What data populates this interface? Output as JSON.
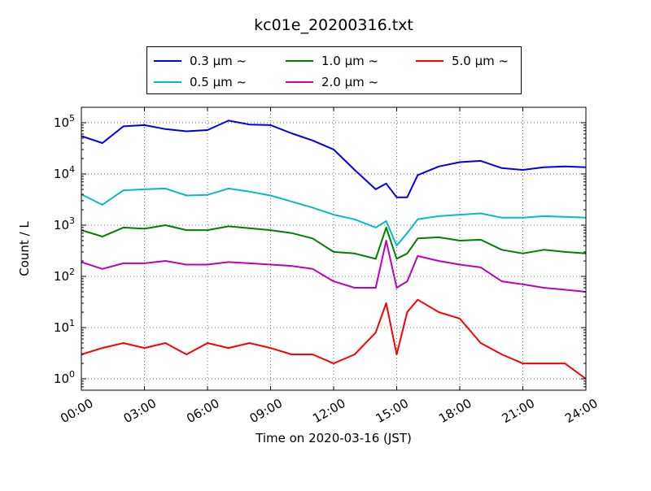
{
  "chart_data": {
    "type": "line",
    "title": "kc01e_20200316.txt",
    "xlabel": "Time on 2020-03-16 (JST)",
    "ylabel": "Count / L",
    "yscale": "log",
    "ylim": [
      0.6,
      200000
    ],
    "xlim": [
      "00:00",
      "24:00"
    ],
    "grid": true,
    "legend_position": "top, above plot",
    "x_tick_labels": [
      "00:00",
      "03:00",
      "06:00",
      "09:00",
      "12:00",
      "15:00",
      "18:00",
      "21:00",
      "24:00"
    ],
    "y_tick_labels": [
      {
        "base": "10",
        "exp": "0"
      },
      {
        "base": "10",
        "exp": "1"
      },
      {
        "base": "10",
        "exp": "2"
      },
      {
        "base": "10",
        "exp": "3"
      },
      {
        "base": "10",
        "exp": "4"
      },
      {
        "base": "10",
        "exp": "5"
      }
    ],
    "x": [
      "00:00",
      "01:00",
      "02:00",
      "03:00",
      "04:00",
      "05:00",
      "06:00",
      "07:00",
      "08:00",
      "09:00",
      "10:00",
      "11:00",
      "12:00",
      "13:00",
      "14:00",
      "14:30",
      "15:00",
      "15:30",
      "16:00",
      "17:00",
      "18:00",
      "19:00",
      "20:00",
      "21:00",
      "22:00",
      "23:00",
      "24:00"
    ],
    "series": [
      {
        "name": "0.3 µm  ~",
        "color": "#0000ee",
        "values": [
          55000,
          40000,
          85000,
          90000,
          75000,
          68000,
          72000,
          110000,
          92000,
          90000,
          62000,
          45000,
          30000,
          12000,
          5000,
          6500,
          3500,
          3500,
          9500,
          14000,
          17000,
          18000,
          13000,
          12000,
          13500,
          14000,
          13500
        ]
      },
      {
        "name": "0.5 µm  ~",
        "color": "#00bfbf",
        "values": [
          4000,
          2500,
          4800,
          5000,
          5200,
          3800,
          3900,
          5200,
          4500,
          3800,
          2900,
          2200,
          1600,
          1300,
          900,
          1200,
          400,
          700,
          1300,
          1500,
          1600,
          1700,
          1400,
          1400,
          1500,
          1450,
          1400
        ]
      },
      {
        "name": "1.0 µm  ~",
        "color": "#008000",
        "values": [
          800,
          600,
          900,
          850,
          1000,
          800,
          800,
          950,
          870,
          800,
          700,
          550,
          300,
          280,
          220,
          900,
          220,
          280,
          550,
          580,
          500,
          520,
          330,
          280,
          330,
          300,
          280
        ]
      },
      {
        "name": "2.0 µm  ~",
        "color": "#bf00bf",
        "values": [
          190,
          140,
          180,
          180,
          200,
          170,
          170,
          190,
          180,
          170,
          160,
          140,
          80,
          60,
          60,
          500,
          60,
          80,
          250,
          200,
          170,
          150,
          80,
          70,
          60,
          55,
          50
        ]
      },
      {
        "name": "5.0 µm  ~",
        "color": "#ff0000",
        "values": [
          3,
          4,
          5,
          4,
          5,
          3,
          5,
          4,
          5,
          4,
          3,
          3,
          2,
          3,
          8,
          30,
          3,
          20,
          35,
          20,
          15,
          5,
          3,
          2,
          2,
          2,
          1
        ]
      }
    ]
  }
}
